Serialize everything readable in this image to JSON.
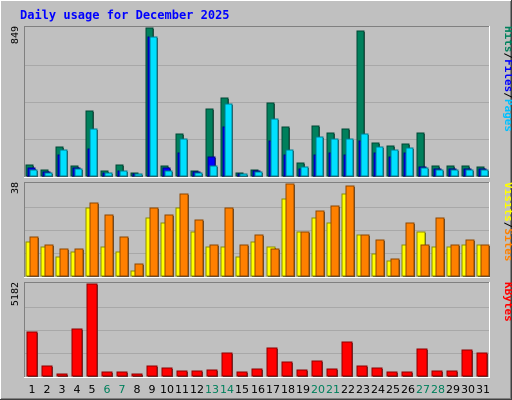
{
  "chart_data": {
    "type": "bar",
    "title": "Daily usage for December 2025",
    "categories": [
      "1",
      "2",
      "3",
      "4",
      "5",
      "6",
      "7",
      "8",
      "9",
      "10",
      "11",
      "12",
      "13",
      "14",
      "15",
      "16",
      "17",
      "18",
      "19",
      "20",
      "21",
      "22",
      "23",
      "24",
      "25",
      "26",
      "27",
      "28",
      "29",
      "30",
      "31"
    ],
    "weekend_days": [
      "6",
      "7",
      "13",
      "14",
      "20",
      "21",
      "27",
      "28"
    ],
    "panels": [
      {
        "id": "hits",
        "max_label": "849",
        "ylim": [
          0,
          849
        ],
        "right_labels": [
          {
            "text": "Hits",
            "color": "#00805c"
          },
          {
            "text": "/",
            "color": "#000000"
          },
          {
            "text": "Files",
            "color": "#0000ff"
          },
          {
            "text": "/",
            "color": "#000000"
          },
          {
            "text": "Pages",
            "color": "#00c0ff"
          }
        ],
        "series": [
          {
            "name": "Hits",
            "color": "#00805c",
            "values": [
              62,
              33,
              168,
              56,
              373,
              27,
              64,
              17,
              849,
              56,
              241,
              31,
              382,
              448,
              16,
              32,
              416,
              282,
              75,
              289,
              244,
              272,
              830,
              191,
              174,
              186,
              246,
              58,
              58,
              58,
              54
            ]
          },
          {
            "name": "Files",
            "color": "#0000ff",
            "values": [
              48,
              24,
              120,
              44,
              155,
              20,
              30,
              10,
              800,
              44,
              130,
              22,
              110,
              280,
              12,
              26,
              200,
              120,
              40,
              120,
              130,
              120,
              200,
              130,
              110,
              130,
              50,
              40,
              40,
              40,
              40
            ]
          },
          {
            "name": "Pages",
            "color": "#00e0ff",
            "values": [
              35,
              18,
              150,
              38,
              268,
              17,
              30,
              9,
              800,
              30,
              214,
              19,
              57,
              415,
              10,
              23,
              325,
              148,
              53,
              221,
              210,
              210,
              240,
              168,
              150,
              160,
              44,
              37,
              37,
              37,
              37
            ]
          }
        ]
      },
      {
        "id": "visits",
        "max_label": "38",
        "ylim": [
          0,
          38
        ],
        "right_labels": [
          {
            "text": "Visits",
            "color": "#ffff00"
          },
          {
            "text": "/",
            "color": "#000000"
          },
          {
            "text": "Sites",
            "color": "#ff8000"
          }
        ],
        "series": [
          {
            "name": "Visits",
            "color": "#ffff00",
            "values": [
              14,
              12,
              8,
              10,
              28,
              12,
              10,
              2,
              24,
              22,
              28,
              18,
              12,
              12,
              8,
              14,
              12,
              32,
              18,
              24,
              22,
              34,
              17,
              9,
              6,
              13,
              18,
              12,
              12,
              13,
              13
            ]
          },
          {
            "name": "Sites",
            "color": "#ff8000",
            "values": [
              16,
              13,
              11,
              11,
              30,
              25,
              16,
              5,
              28,
              25,
              34,
              23,
              13,
              28,
              13,
              17,
              11,
              38,
              18,
              27,
              29,
              37,
              17,
              15,
              7,
              22,
              13,
              24,
              13,
              15,
              13
            ]
          }
        ]
      },
      {
        "id": "kbytes",
        "max_label": "5182",
        "ylim": [
          0,
          5182
        ],
        "right_labels": [
          {
            "text": "KBytes",
            "color": "#ff0000"
          }
        ],
        "series": [
          {
            "name": "KBytes",
            "color": "#ff0000",
            "values": [
              2500,
              560,
              140,
              2650,
              5182,
              210,
              230,
              140,
              560,
              430,
              270,
              260,
              350,
              1300,
              210,
              380,
              1600,
              780,
              350,
              830,
              380,
              1900,
              560,
              440,
              210,
              240,
              1500,
              260,
              290,
              1480,
              1280
            ]
          }
        ]
      }
    ]
  }
}
